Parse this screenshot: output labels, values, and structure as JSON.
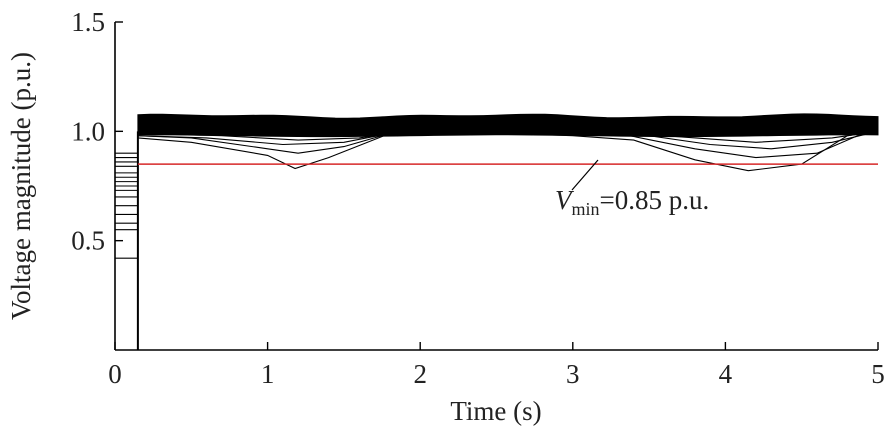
{
  "chart_data": {
    "type": "line",
    "xlabel": "Time (s)",
    "ylabel": "Voltage magnitude (p.u.)",
    "xlim": [
      0,
      5
    ],
    "ylim": [
      0,
      1.5
    ],
    "x_ticks": [
      "0",
      "1",
      "2",
      "3",
      "4",
      "5"
    ],
    "y_ticks": [
      "0.5",
      "1.0",
      "1.5"
    ],
    "x_tick_values": [
      0,
      1,
      2,
      3,
      4,
      5
    ],
    "y_tick_values": [
      0.5,
      1.0,
      1.5
    ],
    "grid": false,
    "fault_clear_time": 0.15,
    "steady_band": {
      "lower": 0.98,
      "upper": 1.07
    },
    "threshold": {
      "value": 0.85,
      "color": "#d62728",
      "symbol": "V",
      "subscript": "min",
      "value_text": "=0.85 p.u."
    },
    "fault_voltages": [
      0.42,
      0.55,
      0.58,
      0.62,
      0.66,
      0.7,
      0.73,
      0.75,
      0.77,
      0.79,
      0.81,
      0.84,
      0.86,
      0.88,
      0.9
    ],
    "series": [
      {
        "values": [
          [
            0.15,
            0.97
          ],
          [
            0.5,
            0.95
          ],
          [
            1.0,
            0.89
          ],
          [
            1.18,
            0.83
          ],
          [
            1.4,
            0.88
          ],
          [
            1.8,
            0.99
          ],
          [
            2.2,
            1.0
          ],
          [
            3.0,
            0.98
          ],
          [
            3.4,
            0.96
          ],
          [
            3.8,
            0.87
          ],
          [
            4.15,
            0.82
          ],
          [
            4.5,
            0.85
          ],
          [
            4.8,
            0.98
          ],
          [
            5.0,
            1.0
          ]
        ]
      },
      {
        "values": [
          [
            0.15,
            0.98
          ],
          [
            0.5,
            0.97
          ],
          [
            1.0,
            0.92
          ],
          [
            1.2,
            0.9
          ],
          [
            1.5,
            0.93
          ],
          [
            1.8,
            0.99
          ],
          [
            2.5,
            1.0
          ],
          [
            3.3,
            0.99
          ],
          [
            3.8,
            0.92
          ],
          [
            4.2,
            0.88
          ],
          [
            4.6,
            0.9
          ],
          [
            4.9,
            0.99
          ],
          [
            5.0,
            1.0
          ]
        ]
      },
      {
        "values": [
          [
            0.15,
            0.98
          ],
          [
            0.6,
            0.97
          ],
          [
            1.1,
            0.94
          ],
          [
            1.5,
            0.95
          ],
          [
            1.8,
            0.99
          ],
          [
            2.5,
            1.0
          ],
          [
            3.4,
            0.99
          ],
          [
            3.9,
            0.94
          ],
          [
            4.3,
            0.92
          ],
          [
            4.7,
            0.95
          ],
          [
            5.0,
            1.0
          ]
        ]
      },
      {
        "values": [
          [
            0.15,
            0.99
          ],
          [
            0.7,
            0.98
          ],
          [
            1.2,
            0.96
          ],
          [
            1.6,
            0.97
          ],
          [
            1.9,
            1.0
          ],
          [
            2.8,
            1.0
          ],
          [
            3.6,
            0.98
          ],
          [
            4.2,
            0.95
          ],
          [
            4.7,
            0.97
          ],
          [
            5.0,
            1.0
          ]
        ]
      }
    ]
  }
}
